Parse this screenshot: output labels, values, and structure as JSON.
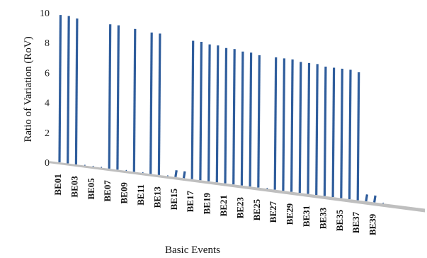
{
  "chart_data": {
    "type": "bar",
    "title": "",
    "xlabel": "Basic Events",
    "ylabel": "Ratio of  Variation (RoV)",
    "ylim": [
      0,
      10
    ],
    "yticks": [
      0,
      2,
      4,
      6,
      8,
      10
    ],
    "grid": false,
    "legend": "none",
    "bar_color": "#2f5d9c",
    "axis_color": "#bfbfbf",
    "categories": [
      "BE01",
      "BE02",
      "BE03",
      "BE04",
      "BE05",
      "BE06",
      "BE07",
      "BE08",
      "BE09",
      "BE10",
      "BE11",
      "BE12",
      "BE13",
      "BE14",
      "BE15",
      "BE16",
      "BE17",
      "BE18",
      "BE19",
      "BE20",
      "BE21",
      "BE22",
      "BE23",
      "BE24",
      "BE25",
      "BE26",
      "BE27",
      "BE28",
      "BE29",
      "BE30",
      "BE31",
      "BE32",
      "BE33",
      "BE34",
      "BE35",
      "BE36",
      "BE37",
      "BE38",
      "BE39",
      "BE40"
    ],
    "category_labels": [
      "BE01",
      "",
      "BE03",
      "",
      "BE05",
      "",
      "BE07",
      "",
      "BE09",
      "",
      "BE11",
      "",
      "BE13",
      "",
      "BE15",
      "",
      "BE17",
      "",
      "BE19",
      "",
      "BE21",
      "",
      "BE23",
      "",
      "BE25",
      "",
      "BE27",
      "",
      "BE29",
      "",
      "BE31",
      "",
      "BE33",
      "",
      "BE35",
      "",
      "BE37",
      "",
      "BE39",
      ""
    ],
    "values": [
      9.9,
      9.9,
      9.8,
      0,
      0,
      0,
      9.7,
      9.7,
      0,
      9.6,
      0,
      9.5,
      9.5,
      0,
      0.5,
      0.5,
      9.3,
      9.3,
      9.2,
      9.2,
      9.1,
      9.1,
      9.0,
      9.0,
      8.9,
      0,
      8.9,
      8.9,
      8.9,
      8.8,
      8.8,
      8.8,
      8.7,
      8.7,
      8.7,
      8.7,
      8.6,
      0.5,
      0.5,
      0
    ]
  }
}
